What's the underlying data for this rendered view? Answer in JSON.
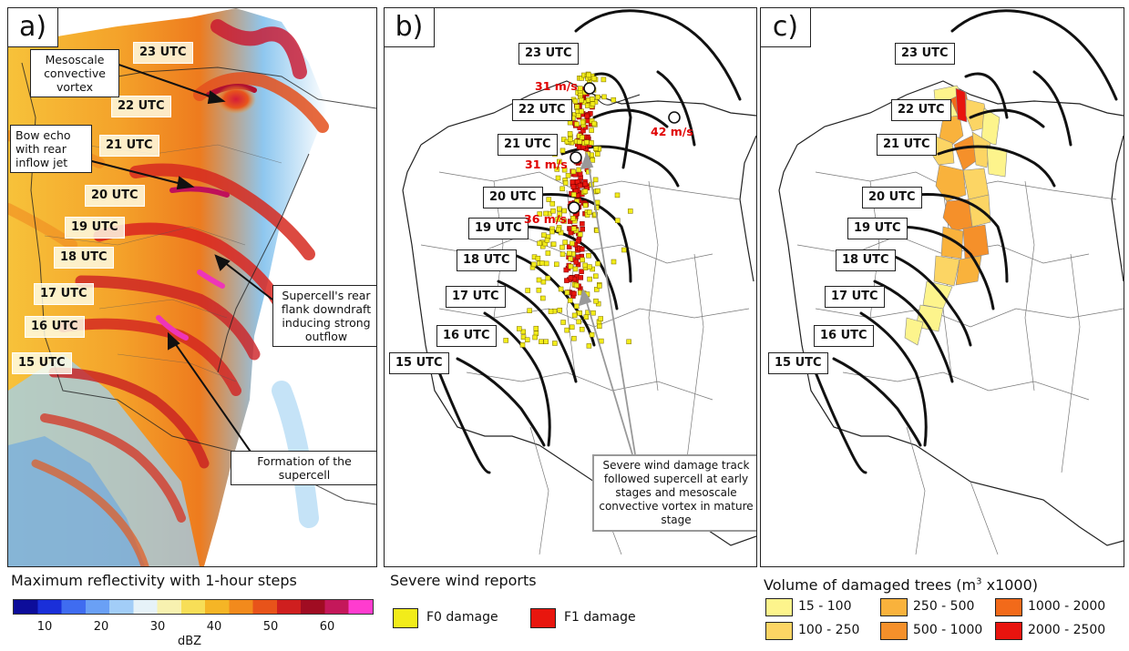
{
  "panels": {
    "a": {
      "letter": "a)",
      "utc_labels": [
        "23 UTC",
        "22 UTC",
        "21 UTC",
        "20 UTC",
        "19 UTC",
        "18 UTC",
        "17 UTC",
        "16 UTC",
        "15 UTC"
      ],
      "annotations": {
        "mcv": "Mesoscale convective vortex",
        "bow": "Bow echo with rear inflow jet",
        "rfd": "Supercell's rear flank downdraft inducing strong outflow",
        "formation": "Formation of the supercell"
      }
    },
    "b": {
      "letter": "b)",
      "utc_labels": [
        "23 UTC",
        "22 UTC",
        "21 UTC",
        "20 UTC",
        "19 UTC",
        "18 UTC",
        "17 UTC",
        "16 UTC",
        "15 UTC"
      ],
      "wind_speeds": [
        "31 m/s",
        "42 m/s",
        "31 m/s",
        "36 m/s"
      ],
      "track_annotation": "Severe wind damage track followed supercell at early stages and mesoscale convective vortex in mature stage"
    },
    "c": {
      "letter": "c)",
      "utc_labels": [
        "23 UTC",
        "22 UTC",
        "21 UTC",
        "20 UTC",
        "19 UTC",
        "18 UTC",
        "17 UTC",
        "16 UTC",
        "15 UTC"
      ]
    }
  },
  "legend_reflectivity": {
    "title": "Maximum reflectivity with 1-hour steps",
    "ticks": [
      "10",
      "20",
      "30",
      "40",
      "50",
      "60"
    ],
    "unit": "dBZ",
    "colors": [
      "#0d0d9a",
      "#1a2fd9",
      "#3f6cf0",
      "#6aa0f5",
      "#a2cdf7",
      "#e6f2f8",
      "#f7f1b0",
      "#f7de57",
      "#f5b526",
      "#f28a1c",
      "#e8531a",
      "#cf1f1f",
      "#a00c22",
      "#c4185a",
      "#ff3ccf"
    ]
  },
  "legend_wind": {
    "title": "Severe wind reports",
    "items": [
      {
        "label": "F0 damage",
        "color": "#f2ec1a"
      },
      {
        "label": "F1 damage",
        "color": "#e8160e"
      }
    ]
  },
  "legend_trees": {
    "title_prefix": "Volume of damaged trees (m",
    "title_sup": "3",
    "title_suffix": " x1000)",
    "items": [
      {
        "label": "15 - 100",
        "color": "#fdf48c"
      },
      {
        "label": "100 - 250",
        "color": "#fcd564"
      },
      {
        "label": "250 - 500",
        "color": "#f9b23c"
      },
      {
        "label": "500 - 1000",
        "color": "#f5902a"
      },
      {
        "label": "1000 - 2000",
        "color": "#f26a1a"
      },
      {
        "label": "2000 - 2500",
        "color": "#e8140e"
      }
    ]
  }
}
